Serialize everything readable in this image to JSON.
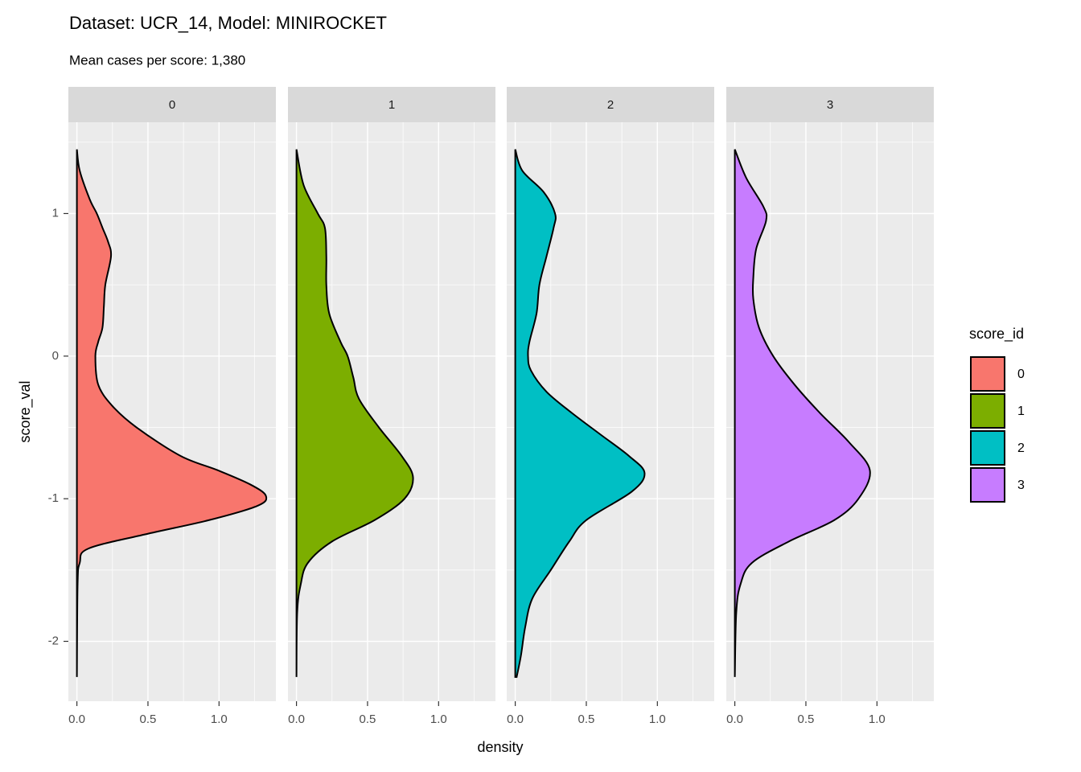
{
  "chart_data": {
    "type": "density",
    "title": "Dataset: UCR_14, Model: MINIROCKET",
    "subtitle": "Mean cases per score: 1,380",
    "x_label": "density",
    "y_label": "score_val",
    "legend_title": "score_id",
    "xlim": [
      -0.06,
      1.4
    ],
    "xticks": [
      {
        "value": 0,
        "label": "0.0"
      },
      {
        "value": 0.5,
        "label": "0.5"
      },
      {
        "value": 1,
        "label": "1.0"
      }
    ],
    "ylim": [
      -2.42,
      1.64
    ],
    "yticks": [
      -2,
      -1,
      0,
      1
    ],
    "grid": true,
    "legend": "right",
    "facets": [
      {
        "name": "0",
        "color": "#F8766D",
        "y": [
          1.45,
          1.3,
          1.1,
          1.0,
          0.9,
          0.8,
          0.7,
          0.5,
          0.35,
          0.2,
          0.1,
          0,
          -0.2,
          -0.35,
          -0.5,
          -0.7,
          -0.8,
          -0.9,
          -0.98,
          -1.05,
          -1.15,
          -1.25,
          -1.35,
          -1.45,
          -1.6,
          -2.25
        ],
        "values": [
          0,
          0.02,
          0.09,
          0.14,
          0.18,
          0.22,
          0.24,
          0.2,
          0.19,
          0.18,
          0.15,
          0.13,
          0.15,
          0.25,
          0.42,
          0.73,
          0.99,
          1.22,
          1.33,
          1.27,
          0.93,
          0.48,
          0.08,
          0.02,
          0.005,
          0
        ]
      },
      {
        "name": "1",
        "color": "#7CAE00",
        "y": [
          1.45,
          1.2,
          1.0,
          0.9,
          0.7,
          0.5,
          0.3,
          0.1,
          0,
          -0.15,
          -0.3,
          -0.5,
          -0.7,
          -0.85,
          -1.0,
          -1.15,
          -1.3,
          -1.45,
          -1.6,
          -1.8,
          -2.25
        ],
        "values": [
          0,
          0.05,
          0.15,
          0.2,
          0.21,
          0.21,
          0.23,
          0.31,
          0.36,
          0.4,
          0.44,
          0.58,
          0.74,
          0.82,
          0.76,
          0.55,
          0.25,
          0.08,
          0.03,
          0.005,
          0
        ]
      },
      {
        "name": "2",
        "color": "#00BFC4",
        "y": [
          1.45,
          1.3,
          1.15,
          1.0,
          0.9,
          0.7,
          0.5,
          0.3,
          0.1,
          0,
          -0.1,
          -0.25,
          -0.4,
          -0.55,
          -0.7,
          -0.82,
          -0.95,
          -1.15,
          -1.3,
          -1.5,
          -1.7,
          -1.9,
          -2.1,
          -2.25
        ],
        "values": [
          0,
          0.05,
          0.2,
          0.28,
          0.27,
          0.22,
          0.17,
          0.15,
          0.1,
          0.09,
          0.11,
          0.22,
          0.4,
          0.6,
          0.8,
          0.91,
          0.82,
          0.5,
          0.38,
          0.25,
          0.12,
          0.07,
          0.04,
          0.01
        ]
      },
      {
        "name": "3",
        "color": "#C77CFF",
        "y": [
          1.45,
          1.25,
          1.05,
          0.95,
          0.75,
          0.55,
          0.4,
          0.2,
          0,
          -0.2,
          -0.4,
          -0.6,
          -0.8,
          -1.0,
          -1.15,
          -1.3,
          -1.45,
          -1.6,
          -1.8,
          -2.25
        ],
        "values": [
          0,
          0.08,
          0.2,
          0.22,
          0.15,
          0.13,
          0.13,
          0.17,
          0.27,
          0.42,
          0.6,
          0.8,
          0.95,
          0.87,
          0.7,
          0.38,
          0.12,
          0.04,
          0.01,
          0
        ]
      }
    ]
  }
}
